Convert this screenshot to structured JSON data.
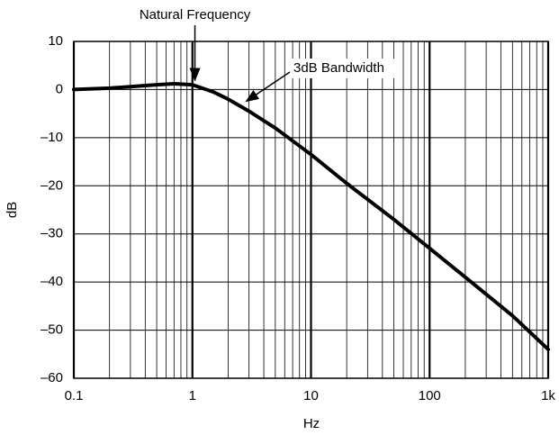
{
  "chart_data": {
    "type": "line",
    "x_label": "Hz",
    "y_label": "dB",
    "log_x": true,
    "grid": true,
    "xlim": [
      0.1,
      1000
    ],
    "ylim": [
      -60,
      10
    ],
    "xticks": [
      0.1,
      1,
      10,
      100,
      {
        "value": 1000,
        "label": "1k"
      }
    ],
    "yticks": [
      10,
      0,
      {
        "value": -10,
        "label": "–10"
      },
      {
        "value": -20,
        "label": "–20"
      },
      {
        "value": -30,
        "label": "–30"
      },
      {
        "value": -40,
        "label": "–40"
      },
      {
        "value": -50,
        "label": "–50"
      },
      {
        "value": -60,
        "label": "–60"
      }
    ],
    "series": [
      {
        "color": "#000000",
        "x": [
          0.1,
          0.2,
          0.3,
          0.5,
          0.7,
          1,
          1.5,
          2,
          3,
          5,
          10,
          20,
          50,
          100,
          200,
          500,
          1000
        ],
        "values": [
          0,
          0.3,
          0.6,
          1.0,
          1.2,
          1.0,
          -0.5,
          -2,
          -4.5,
          -8,
          -13.5,
          -19.5,
          -27,
          -33,
          -39,
          -47,
          -54
        ]
      }
    ],
    "annotations": [
      {
        "text": "Natural Frequency",
        "x": 1.05,
        "y": 1.2
      },
      {
        "text": "3dB Bandwidth",
        "x": 2.7,
        "y": -2.8
      }
    ]
  }
}
